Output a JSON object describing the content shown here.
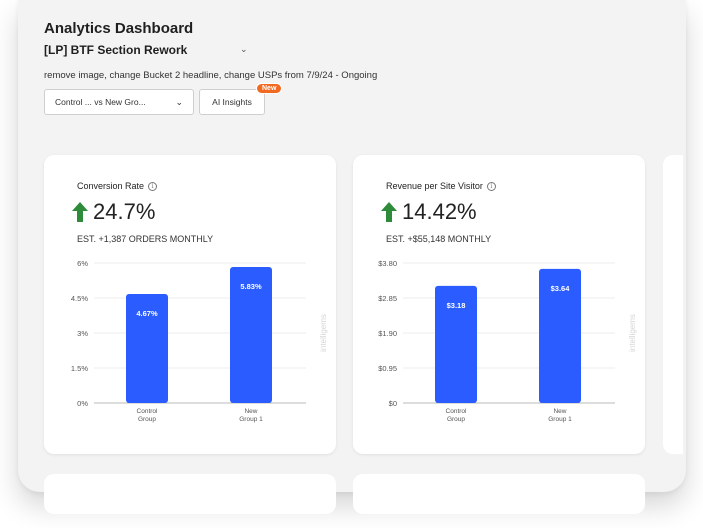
{
  "header": {
    "title": "Analytics Dashboard",
    "experiment": "[LP] BTF Section Rework",
    "description": "remove image, change Bucket 2 headline, change USPs from 7/9/24 - Ongoing"
  },
  "controls": {
    "compare_label": "Control ...  vs New Gro...",
    "ai_insights_label": "AI Insights",
    "new_badge": "New"
  },
  "watermark": "intelligems",
  "colors": {
    "bar": "#2b5cff",
    "arrow_up": "#2e8b3a",
    "badge": "#f26a22"
  },
  "cards": [
    {
      "metric_label": "Conversion Rate",
      "lift": "24.7%",
      "estimate": "EST. +1,387 ORDERS MONTHLY"
    },
    {
      "metric_label": "Revenue per Site Visitor",
      "lift": "14.42%",
      "estimate": "EST. +$55,148 MONTHLY"
    }
  ],
  "chart_data": [
    {
      "type": "bar",
      "categories": [
        "Control Group",
        "New Group 1"
      ],
      "category_lines": [
        [
          "Control",
          "Group"
        ],
        [
          "New",
          "Group 1"
        ]
      ],
      "values": [
        4.67,
        5.83
      ],
      "value_labels": [
        "4.67%",
        "5.83%"
      ],
      "yticks": [
        "6%",
        "4.5%",
        "3%",
        "1.5%",
        "0%"
      ],
      "ylim": [
        0,
        6
      ]
    },
    {
      "type": "bar",
      "categories": [
        "Control Group",
        "New Group 1"
      ],
      "category_lines": [
        [
          "Control",
          "Group"
        ],
        [
          "New",
          "Group 1"
        ]
      ],
      "values": [
        3.18,
        3.64
      ],
      "value_labels": [
        "$3.18",
        "$3.64"
      ],
      "yticks": [
        "$3.80",
        "$2.85",
        "$1.90",
        "$0.95",
        "$0"
      ],
      "ylim": [
        0,
        3.8
      ]
    }
  ]
}
